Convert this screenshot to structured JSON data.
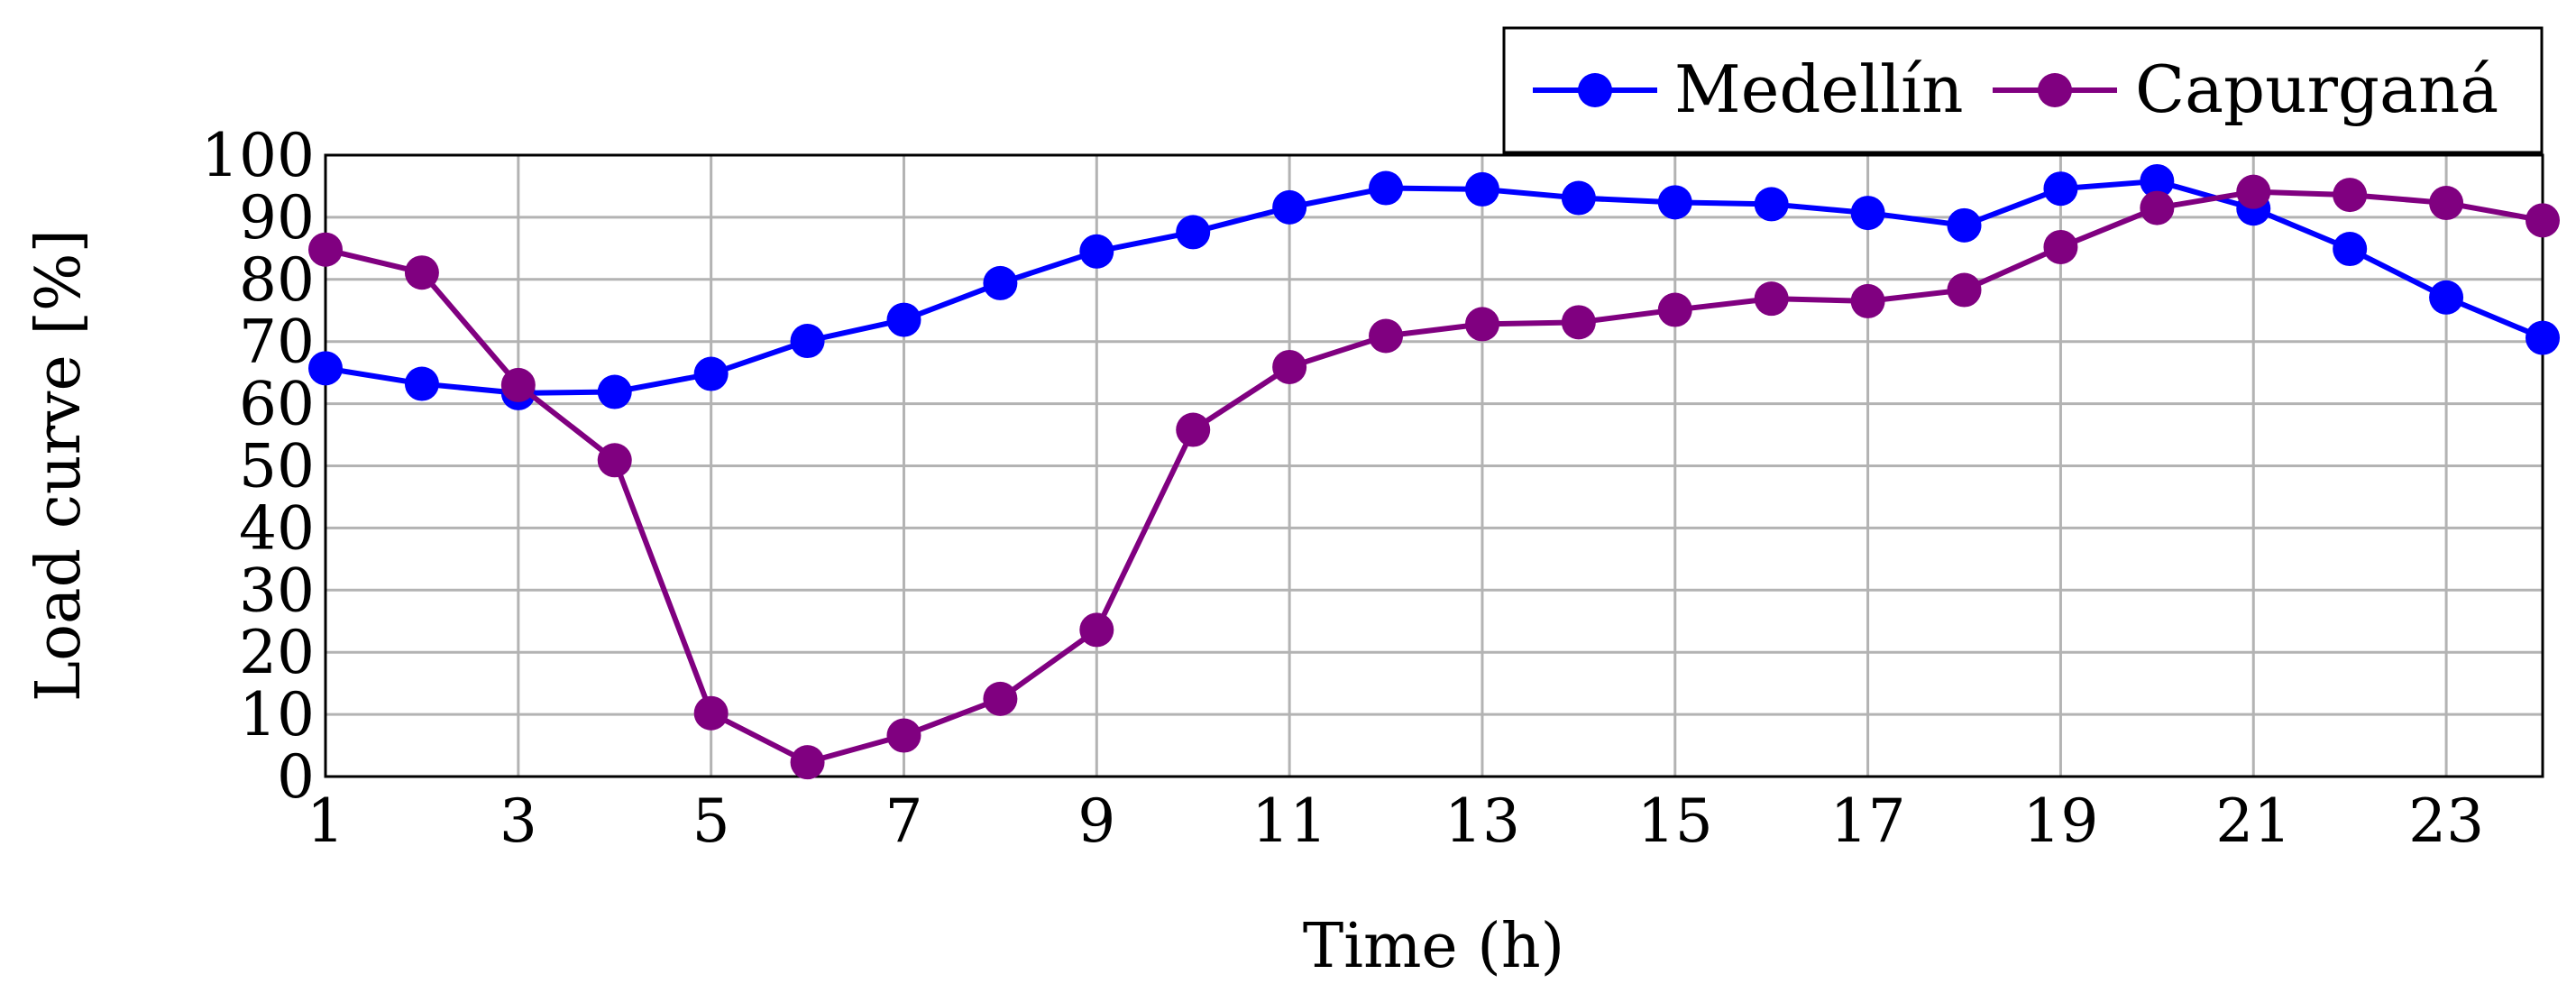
{
  "chart_data": {
    "type": "line",
    "title": "",
    "xlabel": "Time (h)",
    "ylabel": "Load curve [%]",
    "xlim": [
      1,
      24
    ],
    "ylim": [
      0,
      100
    ],
    "xticks": [
      1,
      3,
      5,
      7,
      9,
      11,
      13,
      15,
      17,
      19,
      21,
      23
    ],
    "yticks": [
      0,
      10,
      20,
      30,
      40,
      50,
      60,
      70,
      80,
      90,
      100
    ],
    "grid": true,
    "legend_position": "top-right, outside above plot",
    "x": [
      1,
      2,
      3,
      4,
      5,
      6,
      7,
      8,
      9,
      10,
      11,
      12,
      13,
      14,
      15,
      16,
      17,
      18,
      19,
      20,
      21,
      22,
      23,
      24
    ],
    "series": [
      {
        "name": "Medellín",
        "color": "#0000ff",
        "values": [
          65.7,
          63.2,
          61.7,
          61.9,
          64.8,
          70.1,
          73.5,
          79.4,
          84.5,
          87.6,
          91.6,
          94.7,
          94.5,
          93.1,
          92.4,
          92.1,
          90.7,
          88.7,
          94.6,
          95.8,
          91.4,
          84.9,
          77.1,
          70.6
        ],
        "marker": "circle"
      },
      {
        "name": "Capurganá",
        "color": "#800080",
        "values": [
          84.8,
          81.1,
          63.0,
          50.9,
          10.2,
          2.3,
          6.6,
          12.5,
          23.6,
          55.8,
          65.9,
          70.9,
          72.8,
          73.1,
          75.1,
          76.9,
          76.5,
          78.3,
          85.2,
          91.5,
          94.1,
          93.6,
          92.3,
          89.5
        ],
        "marker": "circle"
      }
    ]
  }
}
